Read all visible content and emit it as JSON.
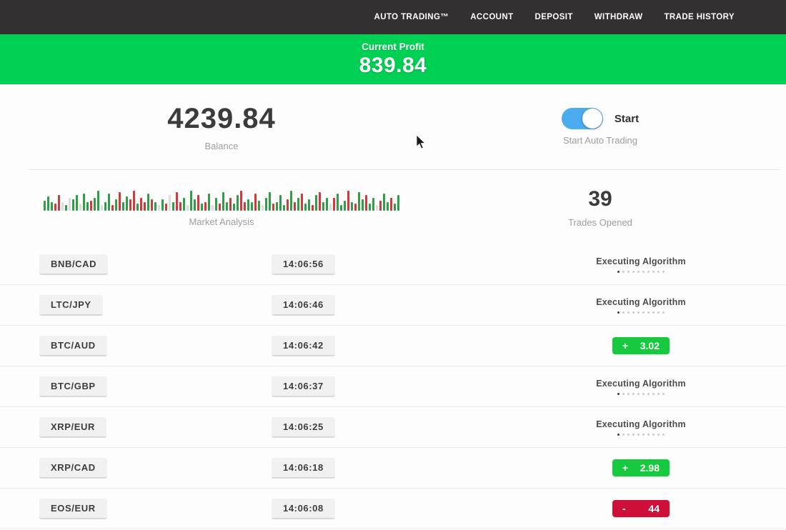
{
  "nav": {
    "items": [
      "AUTO TRADING™",
      "ACCOUNT",
      "DEPOSIT",
      "WITHDRAW",
      "TRADE HISTORY"
    ]
  },
  "banner": {
    "label": "Current Profit",
    "value": "839.84"
  },
  "summary": {
    "balance": {
      "value": "4239.84",
      "label": "Balance"
    },
    "auto_trading": {
      "toggle_state": "on",
      "toggle_label": "Start",
      "label": "Start Auto Trading"
    },
    "market": {
      "label": "Market Analysis",
      "bars": "g14 g20 g12 r10 r22 P12 g8 P18 g16 g22 P10 g24 g12 r14 g18 g28 P8 g12 g24 r8 g16 r26 g12 g20 r16 r28 g10 r18 r12 g24 r16 g12 P8 g16 r10 P22 g12 r26 r12 g18 P8 g28 g16 r22 g10 r12 g24 P8 g18 r10 g26 g12 r18 g10 g22 r28 r12 g16 g12 r24 g14 P8 g18 g26 r10 g12 g22 g8 r16 g28 r12 g18 r24 g10 g16 r8 g22 r26 g12 g18 P10 r18 g24 g8 g14 r28 g12 r10 g26 g16 r22 g10 g18 P8 r14 g24 g12 r18 g10 g22"
    },
    "trades_opened": {
      "value": "39",
      "label": "Trades Opened"
    }
  },
  "executing": {
    "dots": 10
  },
  "trades": [
    {
      "pair": "BNB/CAD",
      "time": "14:06:56",
      "status": "executing",
      "label": "Executing Algorithm"
    },
    {
      "pair": "LTC/JPY",
      "time": "14:06:46",
      "status": "executing",
      "label": "Executing Algorithm"
    },
    {
      "pair": "BTC/AUD",
      "time": "14:06:42",
      "status": "profit",
      "sign": "+",
      "amount": "3.02"
    },
    {
      "pair": "BTC/GBP",
      "time": "14:06:37",
      "status": "executing",
      "label": "Executing Algorithm"
    },
    {
      "pair": "XRP/EUR",
      "time": "14:06:25",
      "status": "executing",
      "label": "Executing Algorithm"
    },
    {
      "pair": "XRP/CAD",
      "time": "14:06:18",
      "status": "profit",
      "sign": "+",
      "amount": "2.98"
    },
    {
      "pair": "EOS/EUR",
      "time": "14:06:08",
      "status": "loss",
      "sign": "-",
      "amount": "44"
    }
  ],
  "colors": {
    "nav_bg": "#323031",
    "banner_green": "#00d053",
    "profit_badge_green": "#17c93f",
    "loss_badge_red": "#ce1038",
    "toggle_blue": "#4aabee",
    "bar_green": "#2f9e47",
    "bar_red": "#cf3b3b",
    "bar_pale": "#dcdcdc"
  }
}
